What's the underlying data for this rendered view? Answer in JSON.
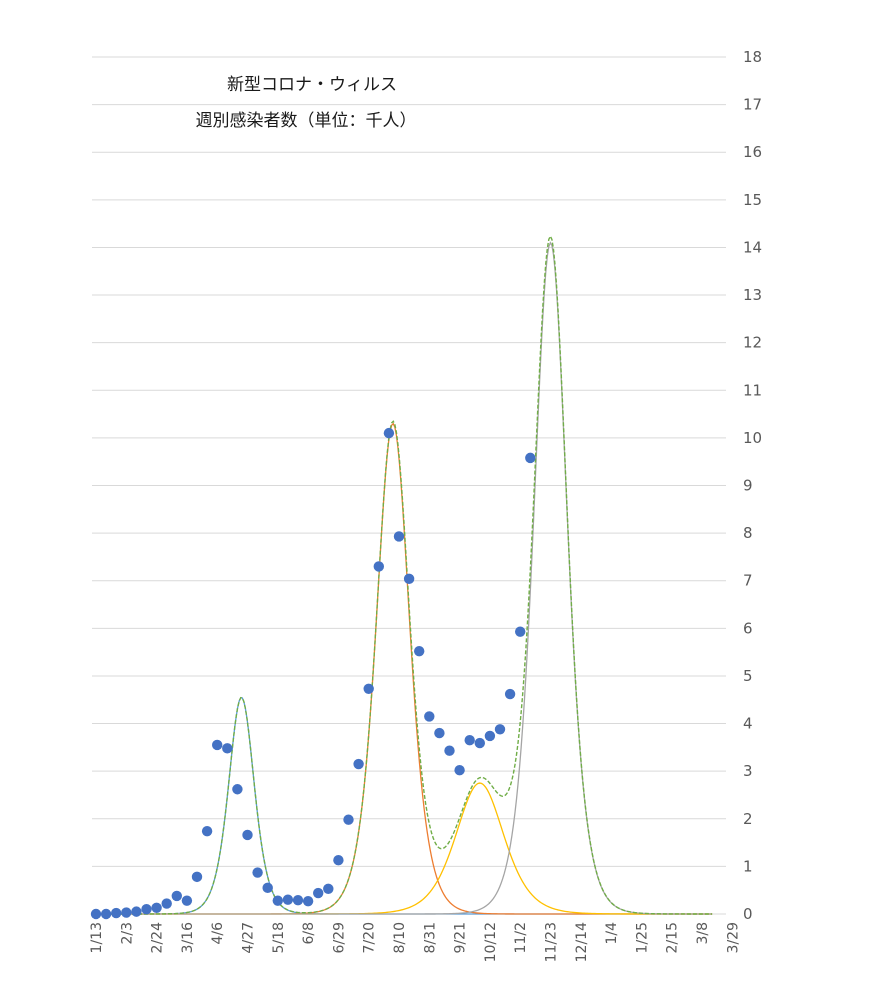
{
  "chart_data": {
    "type": "scatter",
    "title_line1": "新型コロナ・ウィルス",
    "title_line2": "週別感染者数（単位：千人）",
    "yaxis_position": "right",
    "ylim": [
      0,
      18
    ],
    "yticks": [
      0,
      1,
      2,
      3,
      4,
      5,
      6,
      7,
      8,
      9,
      10,
      11,
      12,
      13,
      14,
      15,
      16,
      17,
      18
    ],
    "grid": true,
    "week_labels": [
      "1/13",
      "2/3",
      "2/24",
      "3/16",
      "4/6",
      "4/27",
      "5/18",
      "6/8",
      "6/29",
      "7/20",
      "8/10",
      "8/31",
      "9/21",
      "10/12",
      "11/2",
      "11/23",
      "12/14",
      "1/4",
      "1/25",
      "2/15",
      "3/8",
      "3/29"
    ],
    "label_every_n_weeks": 3,
    "observed": {
      "color": "#4472c4",
      "values": [
        0.0,
        0.0,
        0.02,
        0.03,
        0.05,
        0.1,
        0.13,
        0.22,
        0.38,
        0.28,
        0.78,
        1.74,
        3.55,
        3.48,
        2.62,
        1.66,
        0.87,
        0.55,
        0.28,
        0.3,
        0.29,
        0.27,
        0.44,
        0.53,
        1.13,
        1.98,
        3.15,
        4.73,
        7.3,
        10.1,
        7.93,
        7.04,
        5.52,
        4.15,
        3.8,
        3.43,
        3.02,
        3.65,
        3.59,
        3.74,
        3.88,
        4.62,
        5.93,
        9.58
      ]
    },
    "series": [
      {
        "key": "wave1",
        "color": "#5b9bd5",
        "peak_week": 14.4,
        "amplitude": 4.55,
        "width": 1.7,
        "dashed": false
      },
      {
        "key": "wave2",
        "color": "#ed7d31",
        "peak_week": 29.4,
        "amplitude": 10.3,
        "width": 2.2,
        "dashed": false
      },
      {
        "key": "wave3",
        "color": "#ffc000",
        "peak_week": 38.0,
        "amplitude": 2.75,
        "width": 3.2,
        "dashed": false
      },
      {
        "key": "wave4",
        "color": "#a5a5a5",
        "peak_week": 45.0,
        "amplitude": 14.1,
        "width": 2.2,
        "dashed": false
      },
      {
        "key": "total",
        "color": "#70ad47",
        "dashed": true
      }
    ],
    "fit_weeks": [
      0,
      61
    ]
  }
}
